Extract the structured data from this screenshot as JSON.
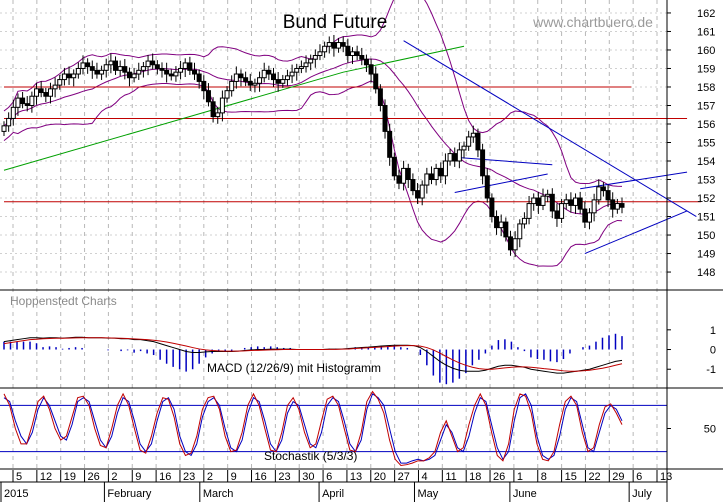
{
  "chart_data": [
    {
      "type": "candlestick",
      "title": "Bund Future",
      "source": "www.chartbuero.de",
      "watermark": "Hoppenstedt Charts",
      "y_ticks": [
        148,
        149,
        150,
        151,
        152,
        153,
        154,
        155,
        156,
        157,
        158,
        159,
        160,
        161,
        162
      ],
      "ylim": [
        147.3,
        162.7
      ],
      "x_day_ticks": [
        "5",
        "12",
        "19",
        "26",
        "2",
        "9",
        "16",
        "23",
        "2",
        "9",
        "16",
        "23",
        "30",
        "6",
        "13",
        "20",
        "27",
        "4",
        "11",
        "18",
        "26",
        "1",
        "8",
        "15",
        "22",
        "29",
        "6",
        "13"
      ],
      "x_month_labels": [
        "2015",
        "February",
        "March",
        "April",
        "May",
        "June",
        "July"
      ],
      "closes": [
        155.9,
        156.3,
        156.9,
        157.4,
        157.1,
        157.0,
        157.5,
        157.9,
        157.7,
        157.5,
        157.9,
        158.1,
        158.4,
        158.7,
        158.5,
        158.7,
        159.0,
        159.3,
        159.1,
        158.9,
        158.7,
        158.9,
        159.2,
        159.4,
        158.9,
        159.1,
        158.8,
        158.5,
        158.7,
        158.9,
        159.1,
        159.4,
        159.2,
        159.0,
        158.9,
        158.7,
        158.6,
        158.8,
        159.0,
        159.3,
        158.9,
        158.7,
        158.3,
        157.8,
        157.2,
        156.4,
        156.6,
        157.4,
        157.8,
        158.3,
        158.7,
        158.5,
        158.3,
        158.1,
        158.2,
        158.5,
        158.9,
        158.7,
        158.4,
        158.2,
        158.4,
        158.6,
        158.8,
        159.0,
        159.1,
        159.3,
        159.5,
        159.7,
        159.9,
        160.2,
        160.4,
        160.1,
        160.4,
        160.2,
        159.7,
        159.9,
        159.7,
        159.5,
        159.2,
        158.7,
        157.9,
        157.0,
        155.6,
        154.2,
        153.2,
        152.8,
        153.6,
        153.0,
        152.4,
        152.0,
        152.7,
        153.3,
        153.0,
        153.6,
        153.2,
        154.0,
        154.4,
        154.0,
        154.6,
        154.8,
        155.3,
        155.5,
        154.6,
        153.2,
        152.0,
        151.0,
        150.4,
        150.7,
        149.9,
        149.2,
        149.8,
        150.6,
        150.9,
        151.7,
        152.0,
        151.6,
        152.1,
        152.2,
        151.3,
        150.9,
        151.7,
        151.9,
        151.6,
        152.0,
        151.4,
        150.7,
        151.2,
        151.9,
        152.6,
        152.4,
        151.9,
        151.4,
        151.7,
        151.5
      ],
      "trend_lines": [
        {
          "color": "#00a000",
          "points": [
            [
              0,
              153.5
            ],
            [
              73,
              158.8
            ],
            [
              99,
              160.2
            ]
          ]
        },
        {
          "color": "#0000c0",
          "points": [
            [
              86,
              160.5
            ],
            [
              149,
              151.0
            ]
          ]
        },
        {
          "color": "#0000c0",
          "points": [
            [
              124,
              152.5
            ],
            [
              147,
              153.4
            ]
          ]
        },
        {
          "color": "#0000c0",
          "points": [
            [
              125,
              149.0
            ],
            [
              147,
              151.3
            ]
          ]
        },
        {
          "color": "#0000c0",
          "points": [
            [
              97,
              154.2
            ],
            [
              118,
              153.8
            ]
          ]
        },
        {
          "color": "#0000c0",
          "points": [
            [
              97,
              152.3
            ],
            [
              117,
              153.3
            ]
          ]
        }
      ],
      "horizontal_lines": [
        {
          "color": "#c00000",
          "y": 158.0,
          "x_from": 0,
          "x_to": 135
        },
        {
          "color": "#c00000",
          "y": 156.3,
          "x_from": 0,
          "x_to": 147
        },
        {
          "color": "#c00000",
          "y": 151.8,
          "x_from": 0,
          "x_to": 150
        }
      ]
    },
    {
      "type": "line",
      "title": "MACD (12/26/9) mit Histogramm",
      "y_ticks": [
        -1,
        0,
        1
      ],
      "ylim": [
        -1.8,
        1.6
      ],
      "series": [
        {
          "color": "#000000",
          "values": [
            0.4,
            0.45,
            0.5,
            0.55,
            0.6,
            0.6,
            0.58,
            0.6,
            0.6,
            0.58,
            0.6,
            0.62,
            0.62,
            0.6,
            0.6,
            0.6,
            0.58,
            0.58,
            0.55,
            0.55,
            0.5,
            0.5,
            0.45,
            0.4,
            0.3,
            0.2,
            0.1,
            0.0,
            -0.1,
            -0.15,
            -0.15,
            -0.12,
            -0.1,
            -0.1,
            -0.1,
            -0.1,
            -0.08,
            -0.05,
            -0.02,
            0.0,
            0.0,
            0.02,
            0.02,
            0.02,
            0.02,
            0.0,
            0.0,
            0.0,
            0.0,
            0.0,
            0.02,
            0.02,
            0.03,
            0.05,
            0.08,
            0.1,
            0.12,
            0.15,
            0.18,
            0.2,
            0.22,
            0.22,
            0.22,
            0.2,
            0.1,
            -0.1,
            -0.35,
            -0.6,
            -0.8,
            -0.95,
            -1.05,
            -1.1,
            -1.1,
            -1.1,
            -1.05,
            -0.95,
            -0.85,
            -0.8,
            -0.8,
            -0.85,
            -0.9,
            -1.0,
            -1.05,
            -1.1,
            -1.15,
            -1.2,
            -1.2,
            -1.15,
            -1.1,
            -1.05,
            -1.0,
            -0.9,
            -0.8,
            -0.7,
            -0.6,
            -0.55
          ]
        },
        {
          "color": "#c00000",
          "values": [
            0.3,
            0.35,
            0.4,
            0.45,
            0.5,
            0.52,
            0.55,
            0.56,
            0.57,
            0.57,
            0.58,
            0.59,
            0.6,
            0.6,
            0.6,
            0.6,
            0.59,
            0.58,
            0.57,
            0.56,
            0.54,
            0.52,
            0.5,
            0.47,
            0.43,
            0.38,
            0.32,
            0.25,
            0.18,
            0.1,
            0.03,
            -0.02,
            -0.05,
            -0.07,
            -0.08,
            -0.08,
            -0.08,
            -0.07,
            -0.05,
            -0.04,
            -0.03,
            -0.02,
            -0.01,
            0.0,
            0.0,
            0.0,
            0.0,
            0.0,
            0.0,
            0.0,
            0.01,
            0.01,
            0.02,
            0.03,
            0.05,
            0.07,
            0.09,
            0.11,
            0.13,
            0.15,
            0.17,
            0.19,
            0.2,
            0.2,
            0.17,
            0.1,
            -0.02,
            -0.18,
            -0.36,
            -0.53,
            -0.68,
            -0.8,
            -0.9,
            -0.97,
            -1.0,
            -1.0,
            -0.97,
            -0.93,
            -0.9,
            -0.88,
            -0.88,
            -0.9,
            -0.93,
            -0.97,
            -1.0,
            -1.04,
            -1.08,
            -1.1,
            -1.1,
            -1.08,
            -1.05,
            -1.0,
            -0.95,
            -0.88,
            -0.8,
            -0.72
          ]
        }
      ]
    },
    {
      "type": "line",
      "title": "Stochastik (5/3/3)",
      "y_ticks": [
        50
      ],
      "ylim": [
        0,
        100
      ],
      "series": [
        {
          "color": "#0000c0",
          "values": [
            90,
            85,
            60,
            40,
            30,
            45,
            75,
            90,
            80,
            60,
            40,
            35,
            55,
            85,
            90,
            85,
            60,
            35,
            25,
            40,
            70,
            90,
            85,
            60,
            30,
            20,
            30,
            60,
            85,
            90,
            75,
            40,
            20,
            15,
            30,
            65,
            85,
            90,
            80,
            50,
            25,
            20,
            35,
            70,
            90,
            85,
            60,
            30,
            20,
            35,
            70,
            85,
            80,
            55,
            30,
            25,
            45,
            80,
            90,
            85,
            60,
            30,
            20,
            35,
            75,
            95,
            90,
            80,
            50,
            20,
            5,
            5,
            8,
            10,
            8,
            10,
            15,
            35,
            55,
            45,
            25,
            20,
            40,
            70,
            90,
            85,
            55,
            25,
            10,
            20,
            60,
            90,
            95,
            80,
            40,
            15,
            10,
            15,
            40,
            75,
            90,
            85,
            55,
            25,
            20,
            45,
            70,
            80,
            75,
            60
          ]
        },
        {
          "color": "#c00000",
          "values": [
            95,
            80,
            50,
            30,
            30,
            55,
            85,
            92,
            75,
            50,
            35,
            40,
            65,
            90,
            92,
            80,
            50,
            28,
            25,
            50,
            80,
            95,
            80,
            50,
            22,
            18,
            40,
            70,
            90,
            88,
            65,
            30,
            15,
            18,
            40,
            75,
            90,
            92,
            75,
            40,
            20,
            22,
            45,
            80,
            95,
            80,
            50,
            22,
            20,
            45,
            80,
            90,
            75,
            45,
            25,
            30,
            60,
            88,
            92,
            80,
            50,
            22,
            20,
            45,
            85,
            98,
            88,
            70,
            35,
            10,
            2,
            3,
            5,
            8,
            8,
            12,
            20,
            45,
            60,
            40,
            20,
            25,
            55,
            80,
            95,
            80,
            45,
            15,
            8,
            30,
            75,
            95,
            92,
            70,
            30,
            10,
            8,
            20,
            55,
            85,
            92,
            80,
            45,
            20,
            25,
            55,
            78,
            82,
            70,
            55
          ]
        }
      ],
      "levels": [
        20,
        80
      ]
    }
  ]
}
